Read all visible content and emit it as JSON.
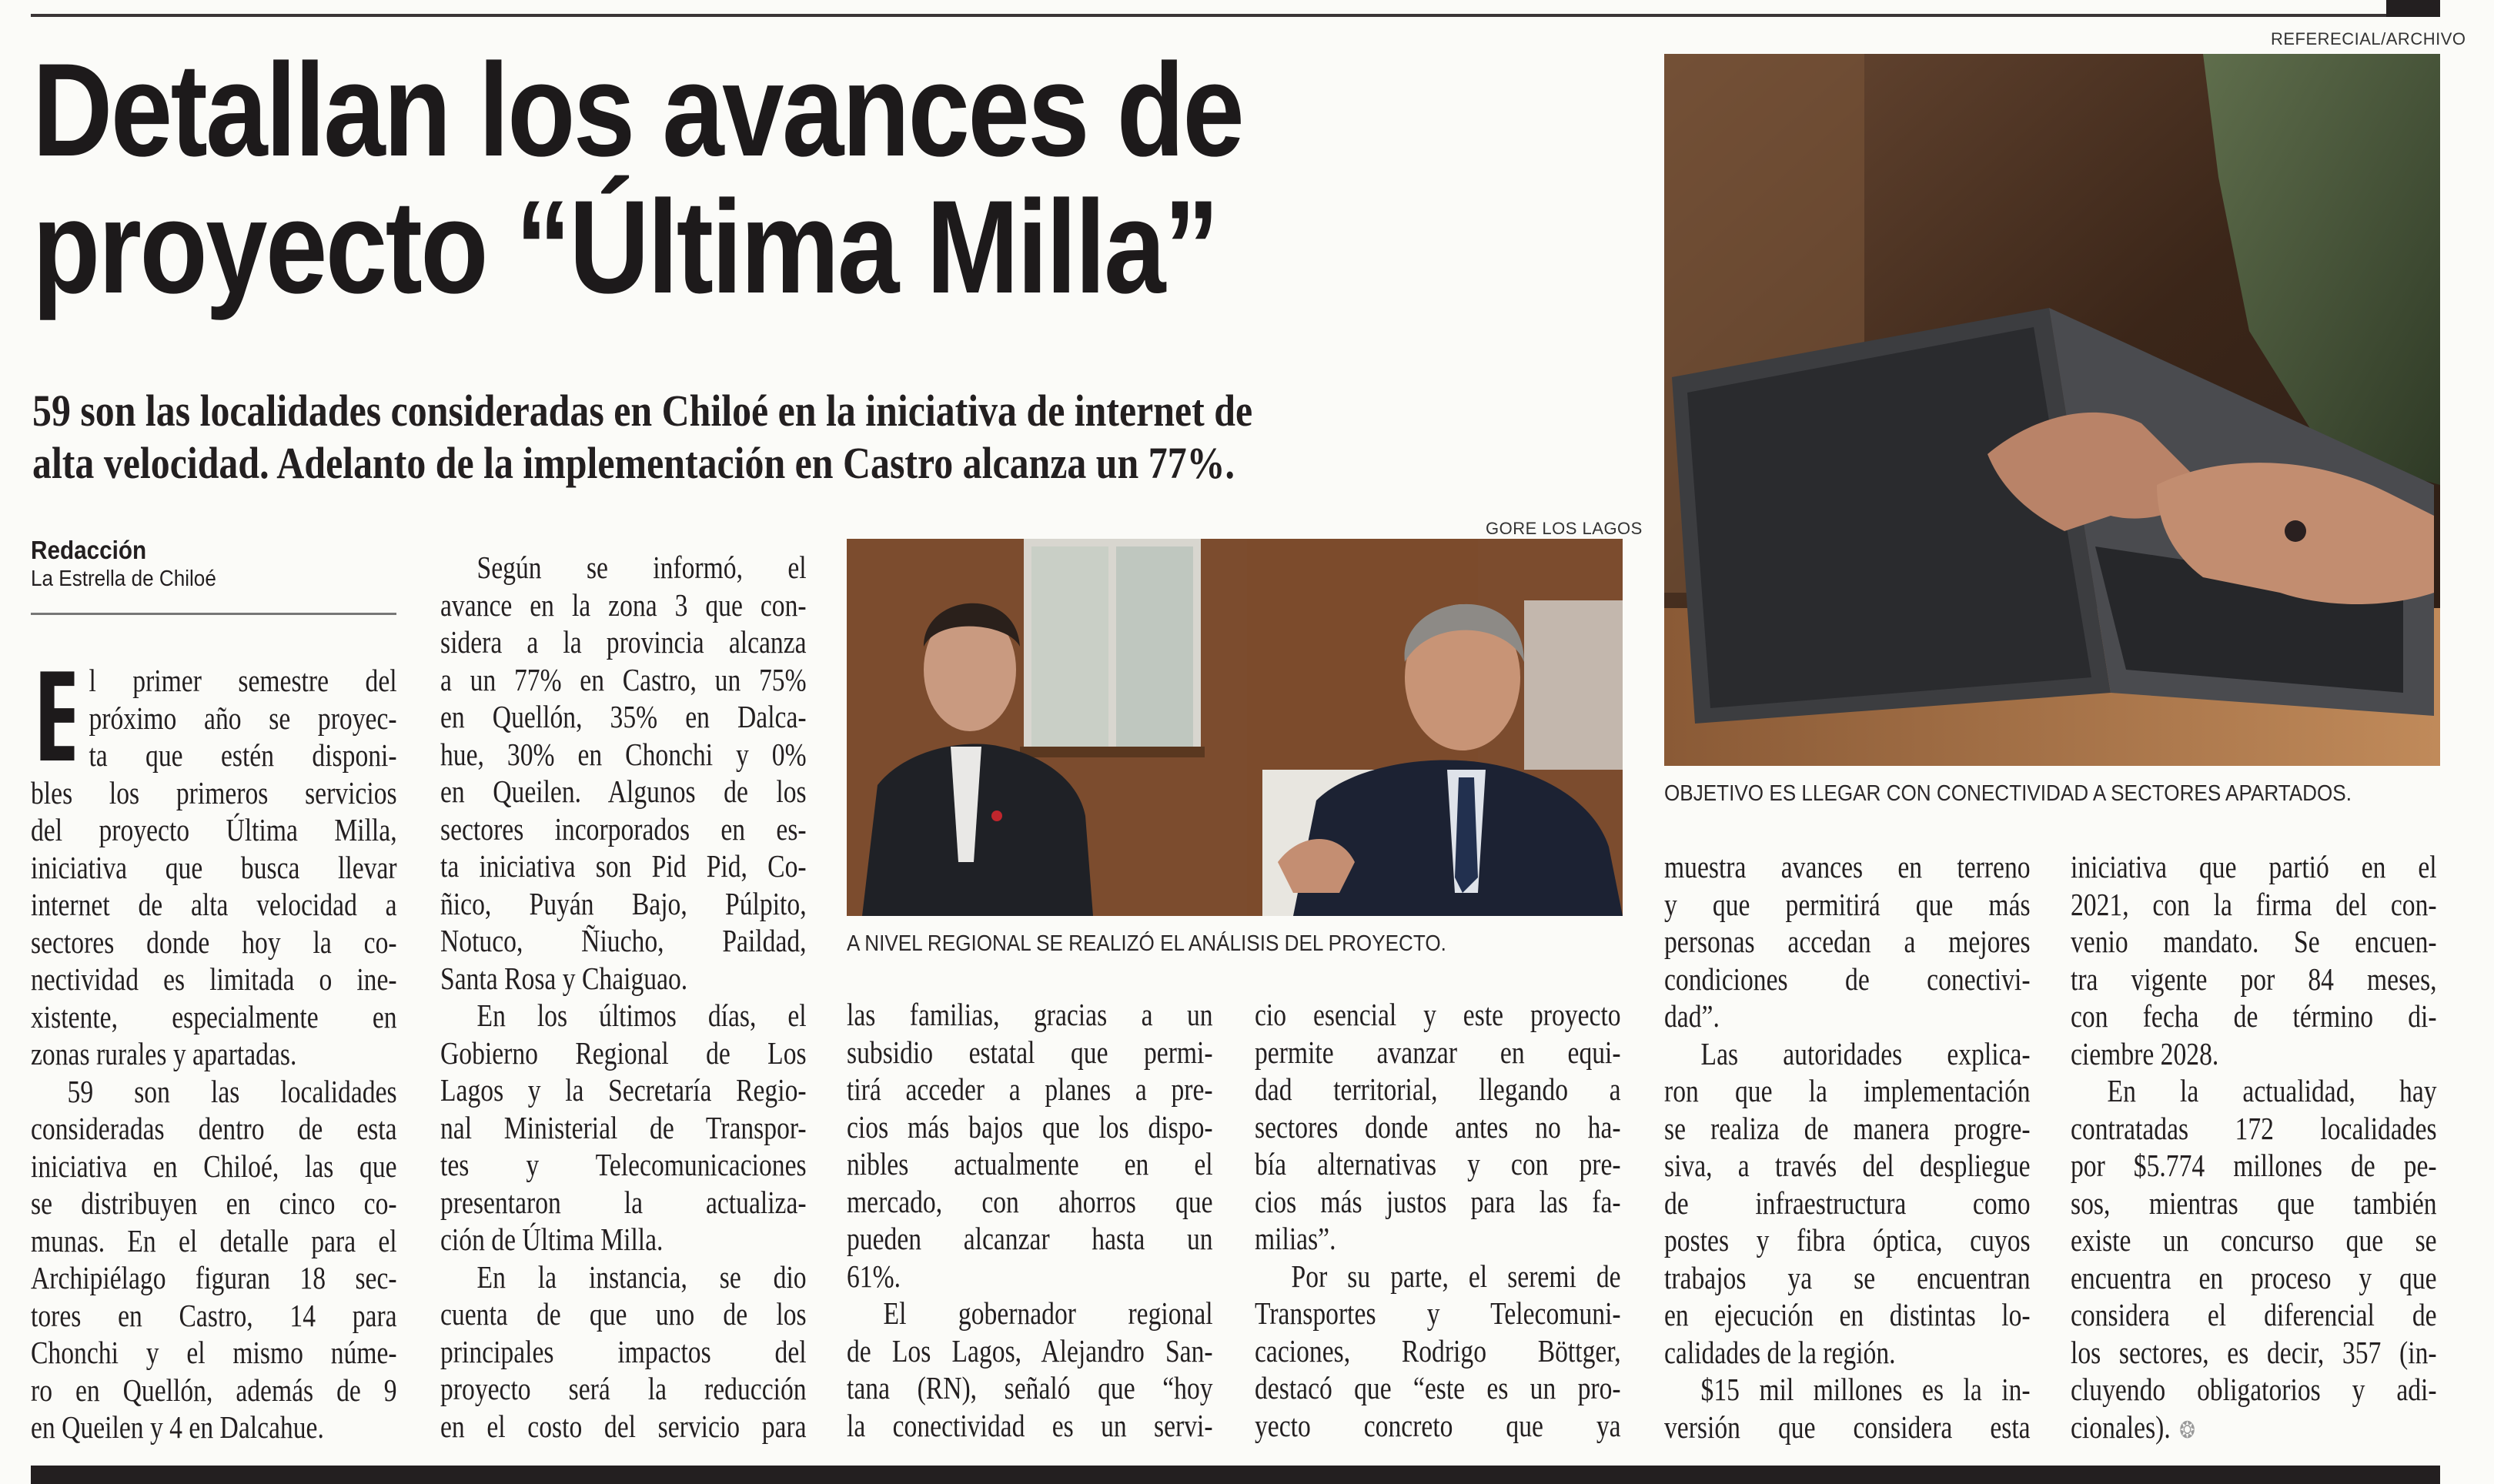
{
  "photo_credits": {
    "main_photo": "REFERECIAL/ARCHIVO",
    "inner_photo": "GORE LOS LAGOS"
  },
  "headline": {
    "lines": [
      "Detallan los avances de",
      "proyecto “Última Milla”"
    ]
  },
  "subhead": {
    "lines": [
      "59 son las localidades consideradas en Chiloé en la iniciativa de internet de",
      "alta velocidad. Adelanto de la implementación en Castro alcanza un 77%."
    ]
  },
  "byline": {
    "author": "Redacción",
    "publication": "La Estrella de Chiloé"
  },
  "captions": {
    "main_photo": "OBJETIVO ES LLEGAR CON CONECTIVIDAD A SECTORES APARTADOS.",
    "inner_photo": "A NIVEL REGIONAL SE REALIZÓ EL ANÁLISIS DEL PROYECTO."
  },
  "drop_cap": "E",
  "columns": [
    {
      "paragraphs": [
        {
          "lines": [
            "l primer semestre del",
            "próximo año se proyec-",
            "ta que estén disponi-",
            "bles los primeros servicios",
            "del proyecto Última Milla,",
            "iniciativa que busca llevar",
            "internet de alta velocidad a",
            "sectores donde hoy la co-",
            "nectividad es limitada o ine-",
            "xistente, especialmente en",
            "zonas rurales y apartadas."
          ]
        },
        {
          "lines": [
            "59 son las localidades",
            "consideradas dentro de esta",
            "iniciativa en Chiloé, las que",
            "se distribuyen en cinco co-",
            "munas. En el detalle para el",
            "Archipiélago figuran 18 sec-",
            "tores en Castro, 14 para",
            "Chonchi y el mismo núme-",
            "ro en Quellón, además de 9",
            "en Queilen y 4 en Dalcahue."
          ]
        }
      ]
    },
    {
      "paragraphs": [
        {
          "lines": [
            "Según se informó, el",
            "avance en la zona 3 que con-",
            "sidera a la provincia alcanza",
            "a un 77% en Castro, un 75%",
            "en Quellón, 35% en Dalca-",
            "hue, 30% en Chonchi y 0%",
            "en Queilen. Algunos de los",
            "sectores incorporados en es-",
            "ta iniciativa son Pid Pid, Co-",
            "ñico, Puyán Bajo, Púlpito,",
            "Notuco, Ñiucho, Paildad,",
            "Santa Rosa y Chaiguao."
          ]
        },
        {
          "lines": [
            "En los últimos días, el",
            "Gobierno Regional de Los",
            "Lagos y la Secretaría Regio-",
            "nal Ministerial de Transpor-",
            "tes y Telecomunicaciones",
            "presentaron la actualiza-",
            "ción de Última Milla."
          ]
        },
        {
          "lines": [
            "En la instancia, se dio",
            "cuenta de que uno de los",
            "principales impactos del",
            "proyecto será la reducción",
            "en el costo del servicio para"
          ],
          "continues": true
        }
      ]
    },
    {
      "paragraphs": [
        {
          "lines": [
            "las familias, gracias a un",
            "subsidio estatal que permi-",
            "tirá acceder a planes a pre-",
            "cios más bajos que los dispo-",
            "nibles actualmente en el",
            "mercado, con ahorros que",
            "pueden alcanzar hasta un",
            "61%."
          ],
          "cont": true
        },
        {
          "lines": [
            "El gobernador regional",
            "de Los Lagos, Alejandro San-",
            "tana (RN), señaló que “hoy",
            "la conectividad es un servi-"
          ],
          "continues": true
        }
      ]
    },
    {
      "paragraphs": [
        {
          "lines": [
            "cio esencial y este proyecto",
            "permite avanzar en equi-",
            "dad territorial, llegando a",
            "sectores donde antes no ha-",
            "bía alternativas y con pre-",
            "cios más justos para las fa-",
            "milias”."
          ],
          "cont": true
        },
        {
          "lines": [
            "Por su parte, el seremi de",
            "Transportes y Telecomuni-",
            "caciones, Rodrigo Böttger,",
            "destacó que “este es un pro-",
            "yecto concreto que ya"
          ],
          "continues": true
        }
      ]
    },
    {
      "paragraphs": [
        {
          "lines": [
            "muestra avances en terreno",
            "y que permitirá que más",
            "personas accedan a mejores",
            "condiciones de conectivi-",
            "dad”."
          ],
          "cont": true
        },
        {
          "lines": [
            "Las autoridades explica-",
            "ron que la implementación",
            "se realiza de manera progre-",
            "siva, a través del despliegue",
            "de infraestructura como",
            "postes y fibra óptica, cuyos",
            "trabajos ya se encuentran",
            "en ejecución en distintas lo-",
            "calidades de la región."
          ]
        },
        {
          "lines": [
            "$15 mil millones es la in-",
            "versión que considera esta"
          ],
          "continues": true
        }
      ]
    },
    {
      "paragraphs": [
        {
          "lines": [
            "iniciativa que partió en el",
            "2021, con la firma del con-",
            "venio mandato. Se encuen-",
            "tra vigente por 84 meses,",
            "con fecha de término di-",
            "ciembre 2028."
          ],
          "cont": true
        },
        {
          "lines": [
            "En la actualidad, hay",
            "contratadas 172 localidades",
            "por $5.774 millones de pe-",
            "sos, mientras que también",
            "existe un concurso que se",
            "encuentra en proceso y que",
            "considera el diferencial de",
            "los sectores, es decir, 357 (in-",
            "cluyendo obligatorios y adi-",
            "cionales)."
          ]
        }
      ]
    }
  ],
  "end_mark_icon": "end-of-article-icon",
  "colors": {
    "text": "#231f20",
    "paper": "#fbfbf8",
    "rule": "#231f20"
  }
}
